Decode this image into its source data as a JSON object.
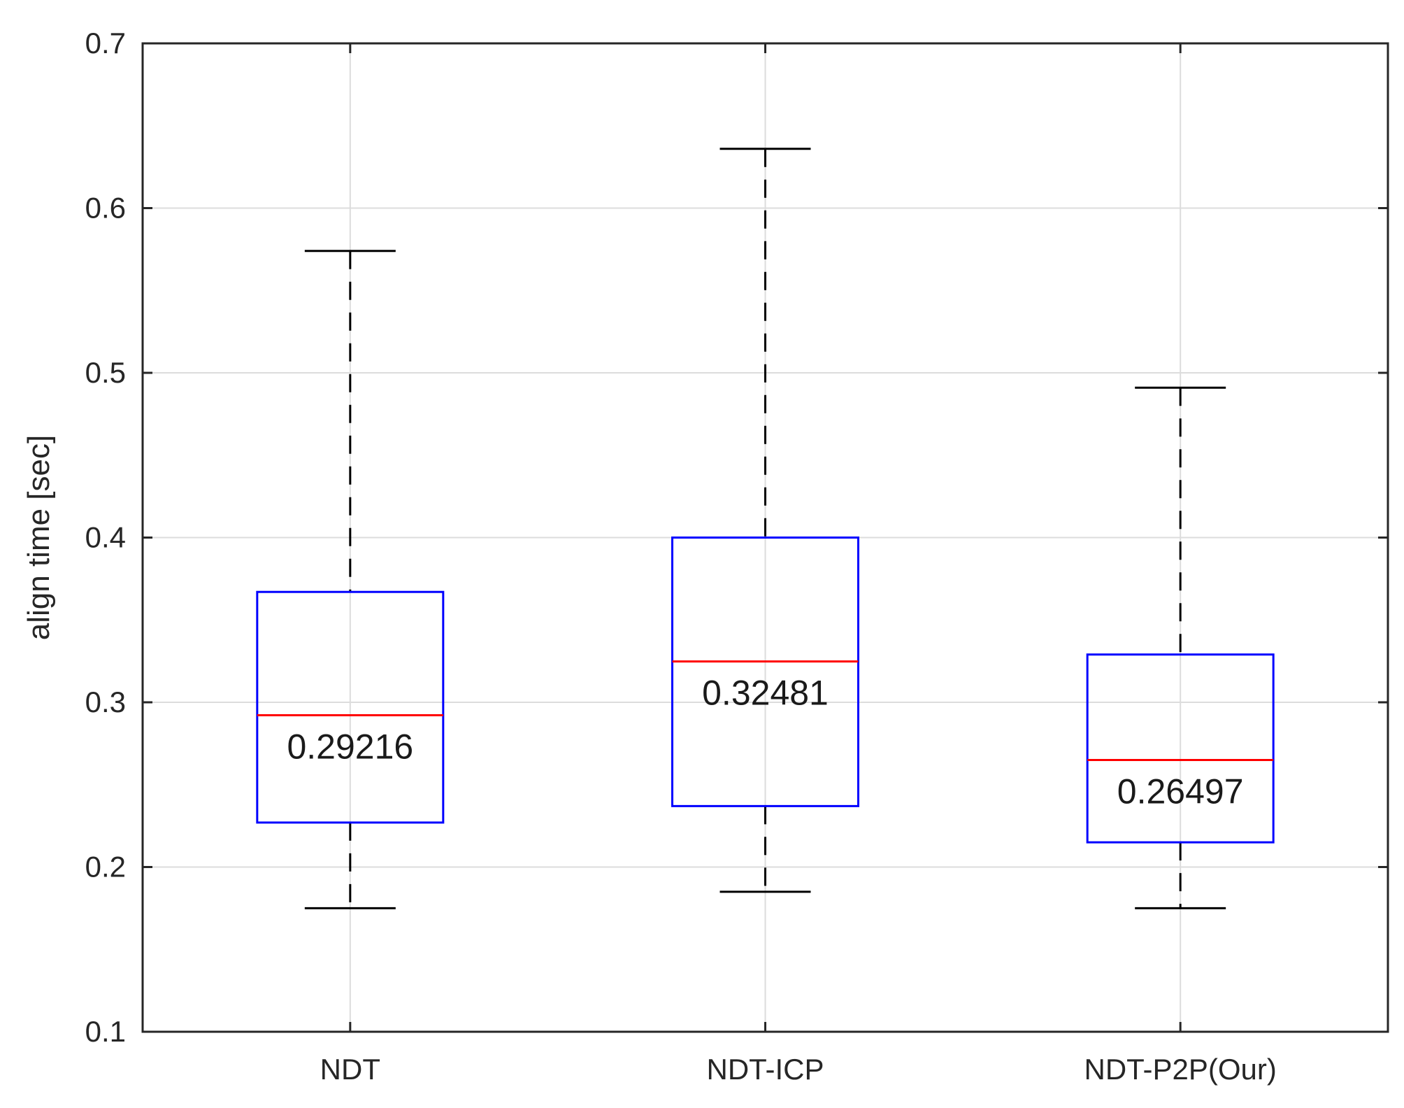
{
  "chart_data": {
    "type": "box",
    "title": "",
    "xlabel": "",
    "ylabel": "align time [sec]",
    "ylim": [
      0.1,
      0.7
    ],
    "yticks": [
      0.1,
      0.2,
      0.3,
      0.4,
      0.5,
      0.6,
      0.7
    ],
    "ytick_labels": [
      "0.1",
      "0.2",
      "0.3",
      "0.4",
      "0.5",
      "0.6",
      "0.7"
    ],
    "grid": true,
    "categories": [
      "NDT",
      "NDT-ICP",
      "NDT-P2P(Our)"
    ],
    "boxes": [
      {
        "category": "NDT",
        "whisker_low": 0.175,
        "q1": 0.227,
        "median": 0.29216,
        "q3": 0.367,
        "whisker_high": 0.574,
        "median_label": "0.29216"
      },
      {
        "category": "NDT-ICP",
        "whisker_low": 0.185,
        "q1": 0.237,
        "median": 0.32481,
        "q3": 0.4,
        "whisker_high": 0.636,
        "median_label": "0.32481"
      },
      {
        "category": "NDT-P2P(Our)",
        "whisker_low": 0.175,
        "q1": 0.215,
        "median": 0.26497,
        "q3": 0.329,
        "whisker_high": 0.491,
        "median_label": "0.26497"
      }
    ],
    "colors": {
      "box": "#0000ff",
      "median": "#ff0000",
      "whisker": "#000000",
      "grid": "#dcdcdc",
      "axis": "#262626"
    }
  }
}
